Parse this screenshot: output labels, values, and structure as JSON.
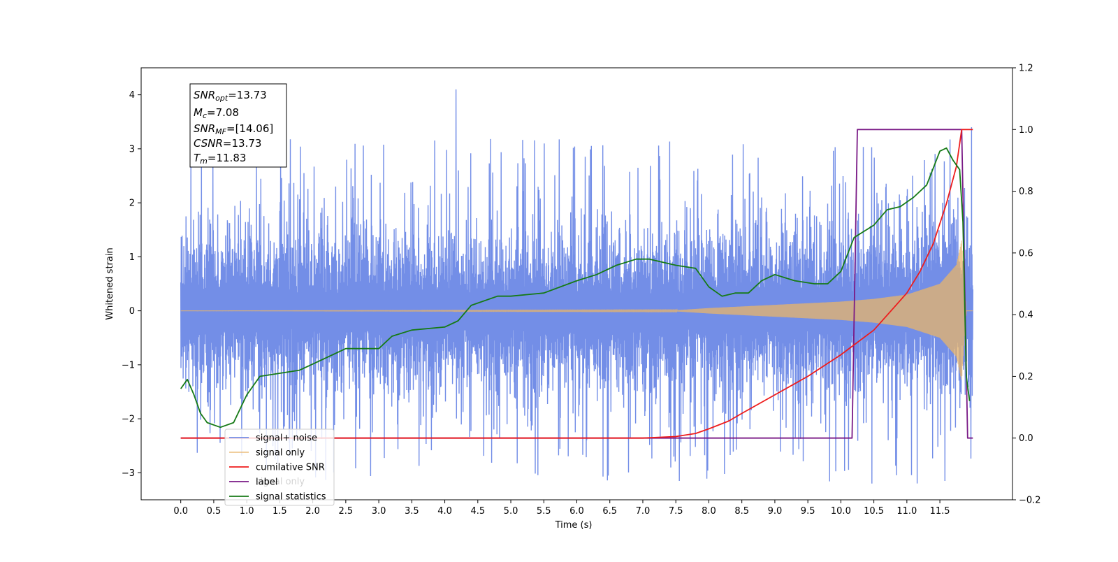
{
  "chart_data": {
    "type": "line",
    "xlabel": "Time (s)",
    "ylabel": "Whitened strain",
    "xlim": [
      -0.6,
      12.6
    ],
    "ylim_left": [
      -3.5,
      4.5
    ],
    "ylim_right": [
      -0.2,
      1.2
    ],
    "x_ticks": [
      0.0,
      0.5,
      1.0,
      1.5,
      2.0,
      2.5,
      3.0,
      3.5,
      4.0,
      4.5,
      5.0,
      5.5,
      6.0,
      6.5,
      7.0,
      7.5,
      8.0,
      8.5,
      9.0,
      9.5,
      10.0,
      10.5,
      11.0,
      11.5
    ],
    "x_tick_labels": [
      "0.0",
      "0.5",
      "1.0",
      "1.5",
      "2.0",
      "2.5",
      "3.0",
      "3.5",
      "4.0",
      "4.5",
      "5.0",
      "5.5",
      "6.0",
      "6.5",
      "7.0",
      "7.5",
      "8.0",
      "8.5",
      "9.0",
      "9.5",
      "10.0",
      "10.5",
      "11.0",
      "11.5"
    ],
    "y_ticks_left": [
      -3,
      -2,
      -1,
      0,
      1,
      2,
      3,
      4
    ],
    "y_tick_labels_left": [
      "−3",
      "−2",
      "−1",
      "0",
      "1",
      "2",
      "3",
      "4"
    ],
    "y_ticks_right": [
      -0.2,
      0.0,
      0.2,
      0.4,
      0.6,
      0.8,
      1.0,
      1.2
    ],
    "y_tick_labels_right": [
      "−0.2",
      "0.0",
      "0.2",
      "0.4",
      "0.6",
      "0.8",
      "1.0",
      "1.2"
    ],
    "grid": false,
    "legend_position": "lower-left",
    "series": [
      {
        "name": "signal+ noise",
        "axis": "left",
        "color": "#6b88e6",
        "kind": "noise_band",
        "t_range": [
          0.0,
          12.0
        ],
        "envelope_points": [
          [
            0.0,
            1.2
          ],
          [
            2.0,
            1.2
          ],
          [
            6.0,
            1.2
          ],
          [
            10.0,
            1.25
          ],
          [
            11.5,
            1.3
          ],
          [
            12.0,
            1.3
          ]
        ],
        "spike_max": 4.1,
        "spike_min": -3.15
      },
      {
        "name": "signal only",
        "axis": "left",
        "color": "#e8b46a",
        "kind": "chirp_envelope",
        "envelope_points": [
          [
            0.0,
            0.0
          ],
          [
            7.5,
            0.01
          ],
          [
            8.0,
            0.05
          ],
          [
            9.0,
            0.11
          ],
          [
            10.0,
            0.17
          ],
          [
            10.5,
            0.22
          ],
          [
            11.0,
            0.3
          ],
          [
            11.5,
            0.5
          ],
          [
            11.75,
            0.85
          ],
          [
            11.83,
            1.3
          ],
          [
            11.9,
            0.0
          ],
          [
            12.0,
            0.0
          ]
        ]
      },
      {
        "name": "cumilative SNR",
        "axis": "right",
        "color": "#ee1c1c",
        "points": [
          [
            0.0,
            0.0
          ],
          [
            7.0,
            0.0
          ],
          [
            7.5,
            0.005
          ],
          [
            7.8,
            0.015
          ],
          [
            8.0,
            0.03
          ],
          [
            8.3,
            0.055
          ],
          [
            8.5,
            0.08
          ],
          [
            9.0,
            0.14
          ],
          [
            9.5,
            0.2
          ],
          [
            10.0,
            0.27
          ],
          [
            10.5,
            0.35
          ],
          [
            11.0,
            0.47
          ],
          [
            11.2,
            0.54
          ],
          [
            11.4,
            0.63
          ],
          [
            11.6,
            0.76
          ],
          [
            11.75,
            0.88
          ],
          [
            11.83,
            1.0
          ],
          [
            12.0,
            1.0
          ]
        ]
      },
      {
        "name": "label",
        "axis": "right",
        "color": "#7a1a86",
        "points": [
          [
            0.0,
            0.0
          ],
          [
            10.17,
            0.0
          ],
          [
            10.25,
            1.0
          ],
          [
            11.83,
            1.0
          ],
          [
            11.92,
            0.0
          ],
          [
            12.0,
            0.0
          ]
        ]
      },
      {
        "name": "signal statistics",
        "axis": "right",
        "color": "#167a16",
        "points": [
          [
            0.0,
            0.16
          ],
          [
            0.1,
            0.19
          ],
          [
            0.2,
            0.14
          ],
          [
            0.3,
            0.08
          ],
          [
            0.4,
            0.05
          ],
          [
            0.6,
            0.035
          ],
          [
            0.8,
            0.05
          ],
          [
            1.0,
            0.14
          ],
          [
            1.2,
            0.2
          ],
          [
            1.5,
            0.21
          ],
          [
            1.8,
            0.22
          ],
          [
            2.0,
            0.24
          ],
          [
            2.5,
            0.29
          ],
          [
            2.8,
            0.29
          ],
          [
            3.0,
            0.29
          ],
          [
            3.2,
            0.33
          ],
          [
            3.5,
            0.35
          ],
          [
            4.0,
            0.36
          ],
          [
            4.2,
            0.38
          ],
          [
            4.4,
            0.43
          ],
          [
            4.8,
            0.46
          ],
          [
            5.0,
            0.46
          ],
          [
            5.5,
            0.47
          ],
          [
            6.0,
            0.51
          ],
          [
            6.3,
            0.53
          ],
          [
            6.6,
            0.56
          ],
          [
            6.9,
            0.58
          ],
          [
            7.1,
            0.58
          ],
          [
            7.5,
            0.56
          ],
          [
            7.8,
            0.55
          ],
          [
            8.0,
            0.49
          ],
          [
            8.2,
            0.46
          ],
          [
            8.4,
            0.47
          ],
          [
            8.6,
            0.47
          ],
          [
            8.8,
            0.51
          ],
          [
            9.0,
            0.53
          ],
          [
            9.3,
            0.51
          ],
          [
            9.6,
            0.5
          ],
          [
            9.8,
            0.5
          ],
          [
            10.0,
            0.54
          ],
          [
            10.2,
            0.65
          ],
          [
            10.5,
            0.69
          ],
          [
            10.7,
            0.74
          ],
          [
            10.9,
            0.75
          ],
          [
            11.1,
            0.78
          ],
          [
            11.3,
            0.82
          ],
          [
            11.5,
            0.93
          ],
          [
            11.6,
            0.94
          ],
          [
            11.7,
            0.9
          ],
          [
            11.8,
            0.87
          ],
          [
            11.85,
            0.7
          ],
          [
            11.9,
            0.2
          ],
          [
            11.95,
            0.12
          ]
        ]
      }
    ],
    "legend_entries": [
      "signal+ noise",
      "signal only",
      "cumilative SNR",
      "label",
      "signal statistics"
    ],
    "legend_ghost_text": [
      "signal only"
    ],
    "stats_box": [
      {
        "base": "SNR",
        "sub": "opt",
        "value": "=13.73"
      },
      {
        "base": "M",
        "sub": "c",
        "value": "=7.08"
      },
      {
        "base": "SNR",
        "sub": "MF",
        "value": "=[14.06]"
      },
      {
        "base": "CSNR",
        "sub": "",
        "value": "=13.73"
      },
      {
        "base": "T",
        "sub": "m",
        "value": "=11.83"
      }
    ]
  }
}
